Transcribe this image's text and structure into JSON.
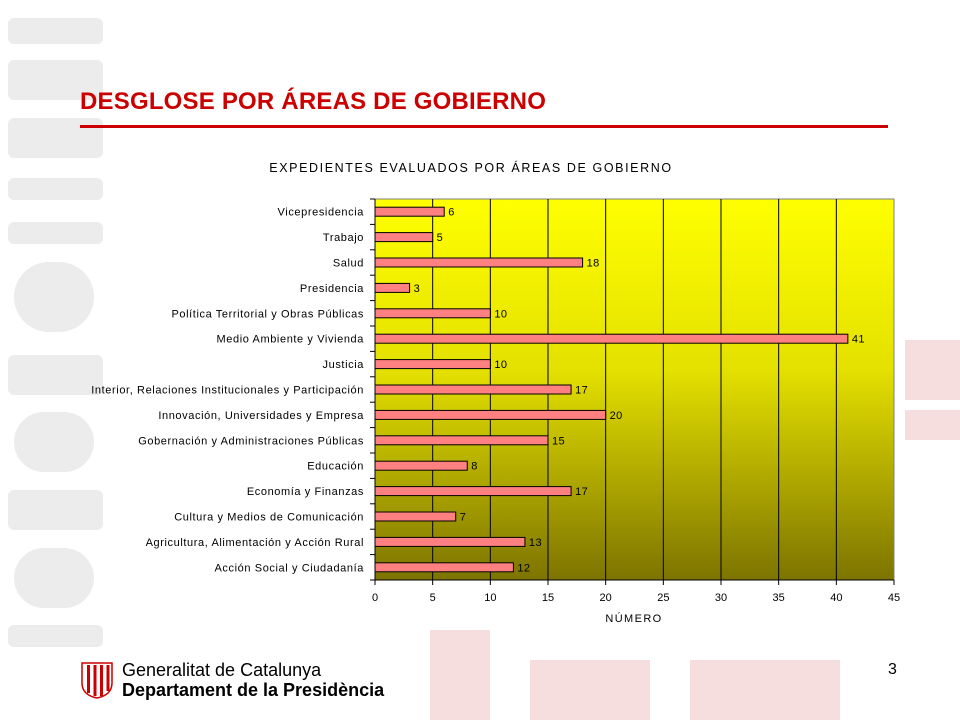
{
  "slide": {
    "title": "DESGLOSE POR ÁREAS DE GOBIERNO",
    "page_number": "3",
    "accent_color": "#cc0000"
  },
  "logo": {
    "line1": "Generalitat de Catalunya",
    "line2": "Departament de la Presidència"
  },
  "chart_data": {
    "type": "bar",
    "orientation": "horizontal",
    "title": "EXPEDIENTES EVALUADOS POR ÁREAS DE GOBIERNO",
    "xlabel": "NÚMERO",
    "ylabel": "",
    "xlim": [
      0,
      45
    ],
    "x_ticks": [
      "0",
      "5",
      "10",
      "15",
      "20",
      "25",
      "30",
      "35",
      "40",
      "45"
    ],
    "grid": true,
    "legend": "none",
    "background": "yellow-to-olive gradient",
    "bar_color": "#ff8080",
    "categories": [
      "Vicepresidencia",
      "Trabajo",
      "Salud",
      "Presidencia",
      "Política Territorial y Obras Públicas",
      "Medio Ambiente y Vivienda",
      "Justicia",
      "Interior, Relaciones Institucionales y Participación",
      "Innovación, Universidades y Empresa",
      "Gobernación  y Administraciones Públicas",
      "Educación",
      "Economía y Finanzas",
      "Cultura y  Medios de Comunicación",
      "Agricultura, Alimentación y Acción Rural",
      "Acción Social y Ciudadanía"
    ],
    "values": [
      6,
      5,
      18,
      3,
      10,
      41,
      10,
      17,
      20,
      15,
      8,
      17,
      7,
      13,
      12
    ],
    "value_labels": [
      "6",
      "5",
      "18",
      "3",
      "10",
      "41",
      "10",
      "17",
      "20",
      "15",
      "8",
      "17",
      "7",
      "13",
      "12"
    ]
  }
}
